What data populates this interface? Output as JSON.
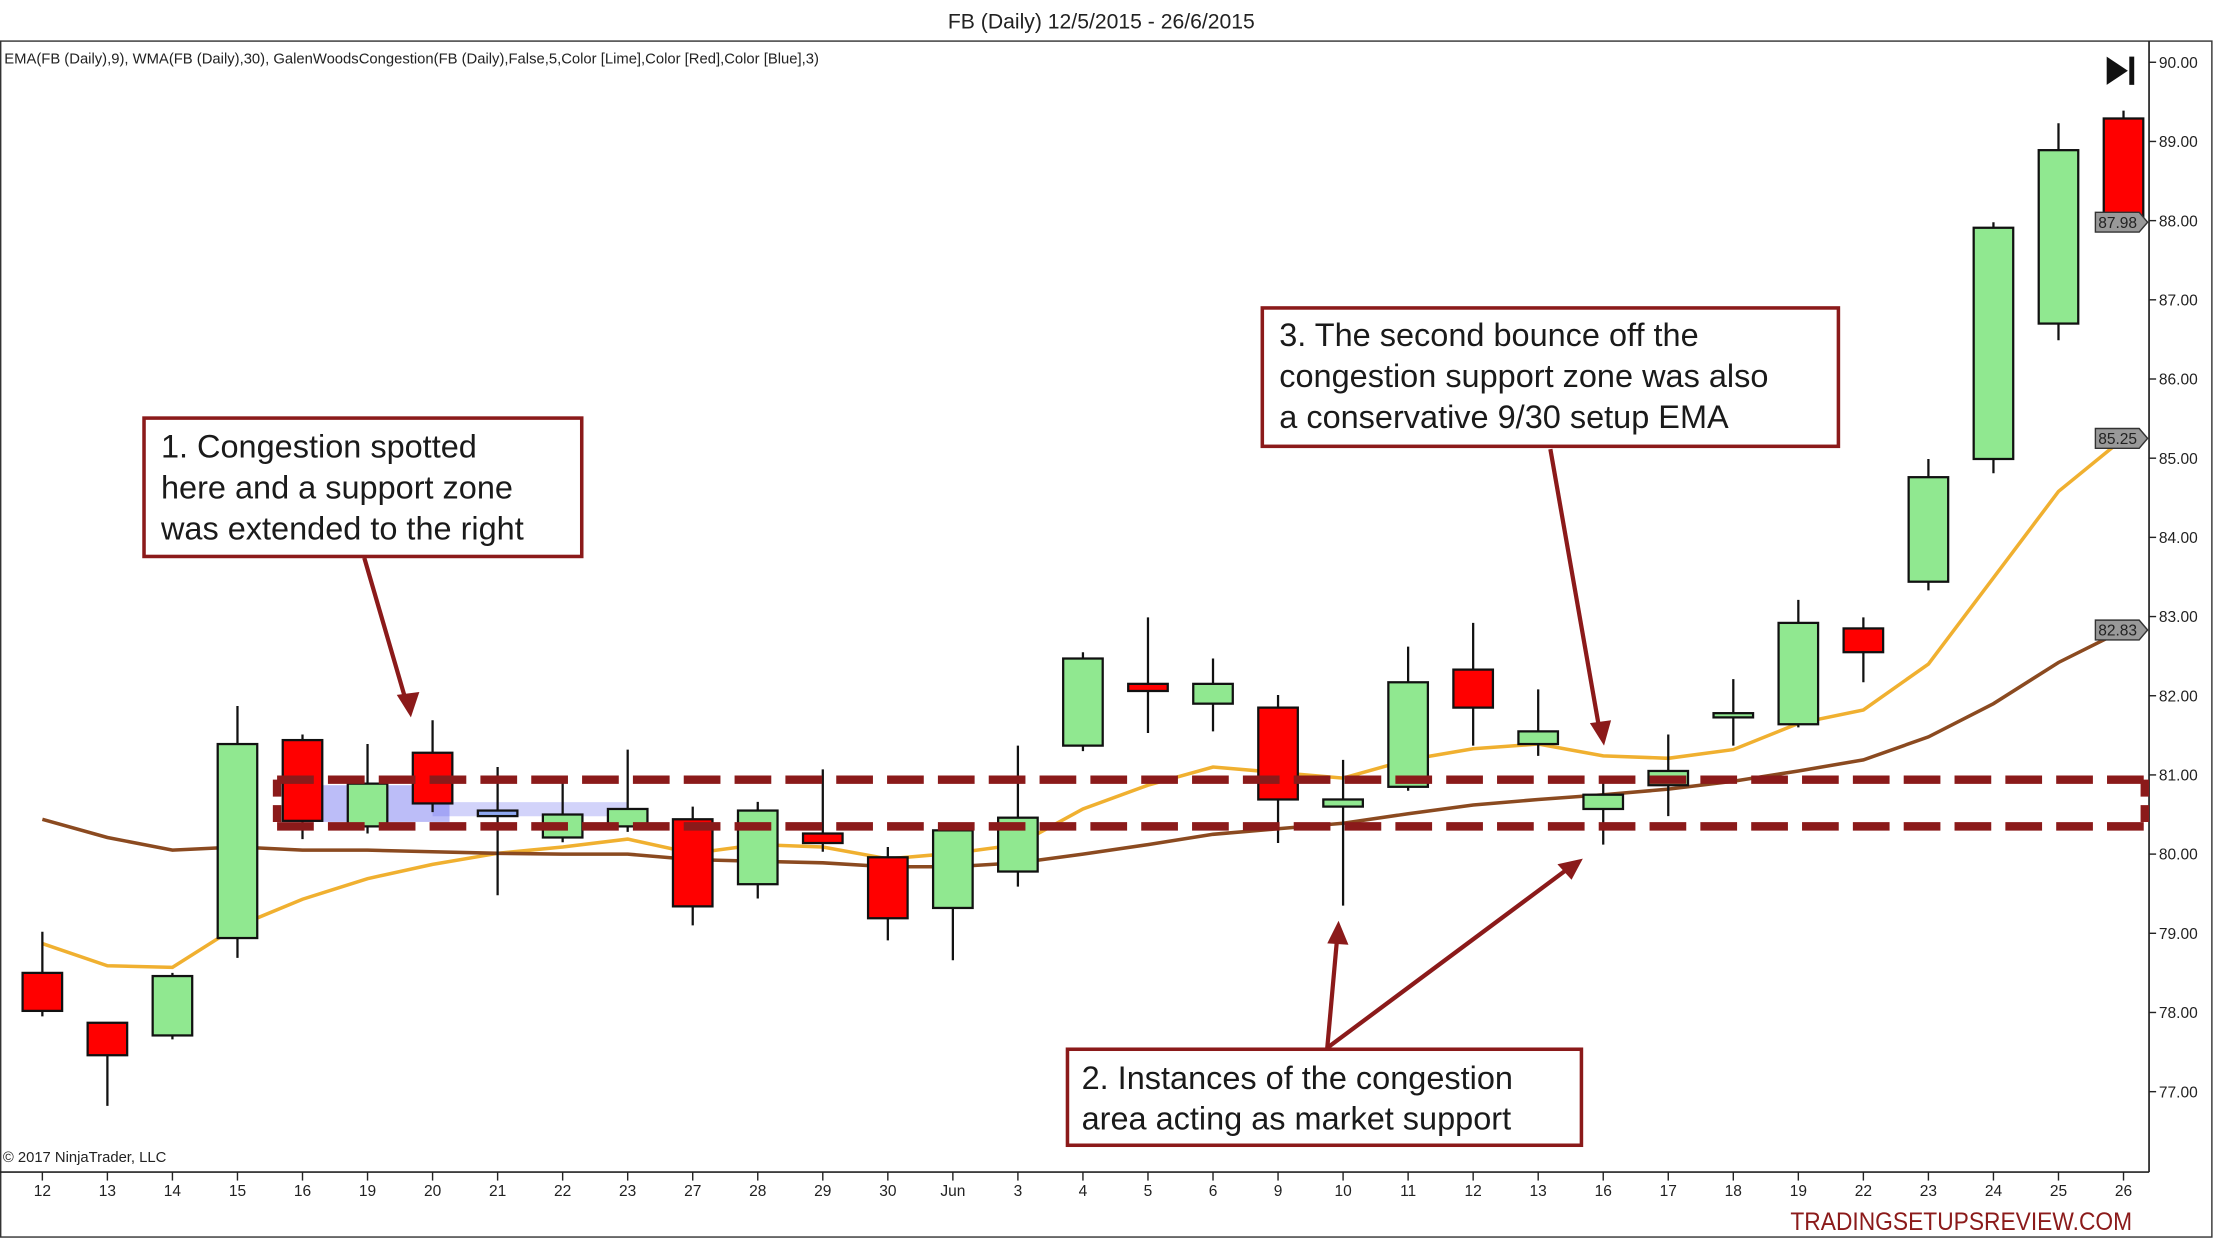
{
  "title": "FB (Daily)  12/5/2015 - 26/6/2015",
  "indicator_label": "EMA(FB (Daily),9), WMA(FB (Daily),30), GalenWoodsCongestion(FB (Daily),False,5,Color [Lime],Color [Red],Color [Blue],3)",
  "copyright": "© 2017 NinjaTrader, LLC",
  "watermark": "TRADINGSETUPSREVIEW.COM",
  "navigation_icon": "skip-to-end-icon",
  "annotations": {
    "note1": [
      "1. Congestion spotted",
      "here and a support zone",
      "was extended to the right"
    ],
    "note2": [
      "2. Instances of the congestion",
      "area acting as market support"
    ],
    "note3": [
      "3. The second bounce off the",
      "congestion support zone was also",
      "a conservative 9/30 setup EMA"
    ]
  },
  "colors": {
    "up": "#90e890",
    "down": "#ff0000",
    "congestion": "#6a6cf0",
    "ema": "#f0b030",
    "wma": "#8b4a20",
    "zone": "#8b1a1a",
    "annotation_border": "#8b1a1a"
  },
  "chart_data": {
    "type": "candlestick",
    "title": "FB (Daily)  12/5/2015 - 26/6/2015",
    "ylim": [
      76.5,
      90.3
    ],
    "y_ticks": [
      "77.00",
      "78.00",
      "79.00",
      "80.00",
      "81.00",
      "82.00",
      "83.00",
      "84.00",
      "85.00",
      "86.00",
      "87.00",
      "88.00",
      "89.00",
      "90.00"
    ],
    "x_labels": [
      "12",
      "13",
      "14",
      "15",
      "16",
      "19",
      "20",
      "21",
      "22",
      "23",
      "27",
      "28",
      "29",
      "30",
      "Jun",
      "3",
      "4",
      "5",
      "6",
      "9",
      "10",
      "11",
      "12",
      "13",
      "16",
      "17",
      "18",
      "19",
      "22",
      "23",
      "24",
      "25",
      "26"
    ],
    "price_markers": [
      {
        "label": "87.98",
        "value": 87.98
      },
      {
        "label": "85.25",
        "value": 85.25
      },
      {
        "label": "82.83",
        "value": 82.83
      }
    ],
    "ohlc": [
      [
        78.5,
        79.02,
        77.95,
        78.02
      ],
      [
        77.87,
        77.87,
        76.82,
        77.46
      ],
      [
        77.71,
        78.5,
        77.66,
        78.46
      ],
      [
        78.94,
        81.87,
        78.69,
        81.39
      ],
      [
        81.44,
        81.51,
        80.19,
        80.42
      ],
      [
        80.35,
        81.39,
        80.26,
        80.89
      ],
      [
        81.28,
        81.69,
        80.53,
        80.64
      ],
      [
        80.48,
        81.1,
        79.48,
        80.55
      ],
      [
        80.21,
        80.96,
        80.15,
        80.5
      ],
      [
        80.35,
        81.32,
        80.28,
        80.57
      ],
      [
        80.44,
        80.6,
        79.1,
        79.34
      ],
      [
        79.62,
        80.66,
        79.44,
        80.55
      ],
      [
        80.26,
        81.07,
        80.03,
        80.14
      ],
      [
        79.96,
        80.09,
        78.91,
        79.19
      ],
      [
        79.32,
        80.34,
        78.66,
        80.3
      ],
      [
        79.78,
        81.37,
        79.59,
        80.46
      ],
      [
        81.37,
        82.55,
        81.3,
        82.47
      ],
      [
        82.15,
        82.99,
        81.53,
        82.06
      ],
      [
        81.9,
        82.47,
        81.55,
        82.15
      ],
      [
        81.85,
        82.01,
        80.14,
        80.69
      ],
      [
        80.6,
        81.19,
        79.35,
        80.69
      ],
      [
        80.85,
        82.62,
        80.8,
        82.17
      ],
      [
        82.33,
        82.92,
        81.37,
        81.85
      ],
      [
        81.39,
        82.08,
        81.24,
        81.55
      ],
      [
        80.57,
        80.92,
        80.12,
        80.75
      ],
      [
        80.87,
        81.51,
        80.48,
        81.05
      ],
      [
        81.78,
        82.21,
        81.37,
        81.78
      ],
      [
        81.64,
        83.21,
        81.6,
        82.92
      ],
      [
        82.85,
        82.99,
        82.17,
        82.55
      ],
      [
        83.44,
        84.99,
        83.33,
        84.76
      ],
      [
        84.99,
        87.98,
        84.81,
        87.91
      ],
      [
        86.7,
        89.23,
        86.49,
        88.89
      ],
      [
        89.29,
        89.39,
        87.88,
        87.98
      ]
    ],
    "congestion_bars": [
      5,
      6,
      7
    ],
    "series": [
      {
        "name": "EMA(FB (Daily),9)",
        "type": "line",
        "values": [
          78.87,
          78.59,
          78.57,
          79.09,
          79.43,
          79.69,
          79.87,
          80.01,
          80.09,
          80.19,
          80.01,
          80.12,
          80.09,
          79.94,
          80.01,
          80.12,
          80.57,
          80.87,
          81.1,
          81.03,
          80.96,
          81.19,
          81.33,
          81.39,
          81.24,
          81.21,
          81.32,
          81.65,
          81.82,
          82.4,
          83.49,
          84.58,
          85.25
        ]
      },
      {
        "name": "WMA(FB (Daily),30)",
        "type": "line",
        "values": [
          80.44,
          80.21,
          80.05,
          80.09,
          80.05,
          80.05,
          80.03,
          80.01,
          80.0,
          80.0,
          79.93,
          79.91,
          79.89,
          79.84,
          79.84,
          79.89,
          80.0,
          80.12,
          80.25,
          80.32,
          80.39,
          80.51,
          80.62,
          80.69,
          80.75,
          80.82,
          80.92,
          81.05,
          81.19,
          81.48,
          81.9,
          82.42,
          82.83
        ]
      }
    ],
    "support_zone": {
      "upper": 80.94,
      "lower": 80.35,
      "from_index": 4
    }
  }
}
